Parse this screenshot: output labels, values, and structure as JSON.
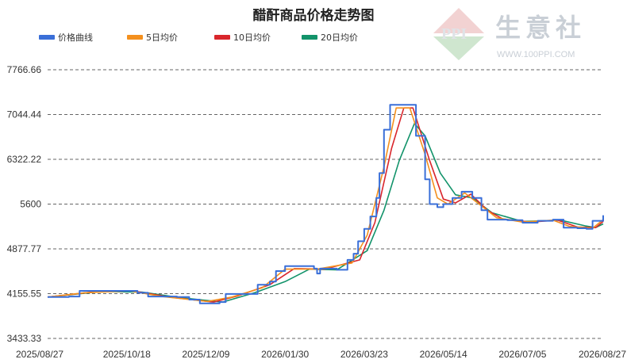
{
  "watermark": {
    "brand": "生意社",
    "url": "WWW.100PPI.COM"
  },
  "colors": {
    "price": "#3a6fd8",
    "ma5": "#f4901e",
    "ma10": "#d9262c",
    "ma20": "#12936a",
    "grid": "#333333"
  },
  "chart_data": {
    "type": "line",
    "title": "醋酐商品价格走势图",
    "xlabel": "",
    "ylabel": "",
    "grid": "horizontal-dashed",
    "legend_position": "top-left",
    "x_tick_labels": [
      "2025/08/27",
      "2025/10/18",
      "2025/12/09",
      "2026/01/30",
      "2026/03/23",
      "2026/05/14",
      "2026/07/05",
      "2026/08/27"
    ],
    "y_tick_labels": [
      "3433.33",
      "4155.55",
      "4877.77",
      "5600",
      "6322.22",
      "7044.44",
      "7766.66"
    ],
    "ylim": [
      3433.33,
      7766.66
    ],
    "x_range": [
      "2025/08/27",
      "2026/08/27"
    ],
    "series": [
      {
        "name": "价格曲线",
        "color": "#3a6fd8",
        "points": [
          [
            "2025/08/27",
            4100
          ],
          [
            "2025/09/10",
            4110
          ],
          [
            "2025/09/17",
            4200
          ],
          [
            "2025/10/18",
            4200
          ],
          [
            "2025/10/25",
            4170
          ],
          [
            "2025/11/01",
            4110
          ],
          [
            "2025/11/20",
            4100
          ],
          [
            "2025/11/28",
            4060
          ],
          [
            "2025/12/05",
            4000
          ],
          [
            "2025/12/18",
            4020
          ],
          [
            "2025/12/22",
            4150
          ],
          [
            "2026/01/05",
            4150
          ],
          [
            "2026/01/12",
            4300
          ],
          [
            "2026/01/20",
            4350
          ],
          [
            "2026/01/24",
            4520
          ],
          [
            "2026/01/30",
            4600
          ],
          [
            "2026/02/18",
            4560
          ],
          [
            "2026/02/20",
            4480
          ],
          [
            "2026/02/22",
            4560
          ],
          [
            "2026/03/05",
            4540
          ],
          [
            "2026/03/12",
            4700
          ],
          [
            "2026/03/16",
            4800
          ],
          [
            "2026/03/19",
            5000
          ],
          [
            "2026/03/23",
            5200
          ],
          [
            "2026/03/27",
            5400
          ],
          [
            "2026/03/31",
            5700
          ],
          [
            "2026/04/02",
            6100
          ],
          [
            "2026/04/05",
            6800
          ],
          [
            "2026/04/09",
            7200
          ],
          [
            "2026/04/21",
            7200
          ],
          [
            "2026/04/26",
            6700
          ],
          [
            "2026/05/02",
            6000
          ],
          [
            "2026/05/05",
            5600
          ],
          [
            "2026/05/10",
            5550
          ],
          [
            "2026/05/14",
            5600
          ],
          [
            "2026/05/20",
            5700
          ],
          [
            "2026/05/26",
            5800
          ],
          [
            "2026/06/02",
            5700
          ],
          [
            "2026/06/08",
            5500
          ],
          [
            "2026/06/12",
            5350
          ],
          [
            "2026/06/25",
            5340
          ],
          [
            "2026/07/05",
            5300
          ],
          [
            "2026/07/15",
            5330
          ],
          [
            "2026/07/25",
            5350
          ],
          [
            "2026/08/01",
            5220
          ],
          [
            "2026/08/10",
            5210
          ],
          [
            "2026/08/16",
            5200
          ],
          [
            "2026/08/20",
            5330
          ],
          [
            "2026/08/27",
            5420
          ]
        ]
      },
      {
        "name": "5日均价",
        "color": "#f4901e",
        "points": [
          [
            "2025/08/27",
            4100
          ],
          [
            "2025/09/20",
            4170
          ],
          [
            "2025/10/20",
            4200
          ],
          [
            "2025/11/10",
            4110
          ],
          [
            "2025/12/10",
            4030
          ],
          [
            "2025/12/26",
            4100
          ],
          [
            "2026/01/15",
            4250
          ],
          [
            "2026/01/30",
            4550
          ],
          [
            "2026/02/20",
            4550
          ],
          [
            "2026/03/15",
            4650
          ],
          [
            "2026/03/25",
            5100
          ],
          [
            "2026/04/05",
            6200
          ],
          [
            "2026/04/13",
            7150
          ],
          [
            "2026/04/22",
            7150
          ],
          [
            "2026/05/02",
            6400
          ],
          [
            "2026/05/10",
            5700
          ],
          [
            "2026/05/17",
            5600
          ],
          [
            "2026/05/28",
            5780
          ],
          [
            "2026/06/08",
            5570
          ],
          [
            "2026/06/18",
            5380
          ],
          [
            "2026/07/05",
            5310
          ],
          [
            "2026/07/25",
            5340
          ],
          [
            "2026/08/05",
            5240
          ],
          [
            "2026/08/20",
            5210
          ],
          [
            "2026/08/27",
            5350
          ]
        ]
      },
      {
        "name": "10日均价",
        "color": "#d9262c",
        "points": [
          [
            "2025/08/27",
            4100
          ],
          [
            "2025/09/25",
            4180
          ],
          [
            "2025/10/22",
            4200
          ],
          [
            "2025/11/15",
            4100
          ],
          [
            "2025/12/14",
            4020
          ],
          [
            "2025/12/30",
            4120
          ],
          [
            "2026/01/20",
            4300
          ],
          [
            "2026/02/05",
            4560
          ],
          [
            "2026/02/25",
            4550
          ],
          [
            "2026/03/20",
            4700
          ],
          [
            "2026/03/30",
            5300
          ],
          [
            "2026/04/10",
            6500
          ],
          [
            "2026/04/18",
            7150
          ],
          [
            "2026/04/24",
            7150
          ],
          [
            "2026/05/05",
            6300
          ],
          [
            "2026/05/14",
            5680
          ],
          [
            "2026/05/22",
            5620
          ],
          [
            "2026/06/01",
            5760
          ],
          [
            "2026/06/12",
            5500
          ],
          [
            "2026/06/22",
            5360
          ],
          [
            "2026/07/10",
            5310
          ],
          [
            "2026/07/28",
            5340
          ],
          [
            "2026/08/10",
            5230
          ],
          [
            "2026/08/22",
            5220
          ],
          [
            "2026/08/27",
            5320
          ]
        ]
      },
      {
        "name": "20日均价",
        "color": "#12936a",
        "points": [
          [
            "2025/08/27",
            4100
          ],
          [
            "2025/10/01",
            4190
          ],
          [
            "2025/10/28",
            4180
          ],
          [
            "2025/11/22",
            4090
          ],
          [
            "2025/12/20",
            4020
          ],
          [
            "2026/01/10",
            4170
          ],
          [
            "2026/01/30",
            4350
          ],
          [
            "2026/02/15",
            4550
          ],
          [
            "2026/03/05",
            4540
          ],
          [
            "2026/03/25",
            4850
          ],
          [
            "2026/04/05",
            5500
          ],
          [
            "2026/04/15",
            6300
          ],
          [
            "2026/04/25",
            6900
          ],
          [
            "2026/05/02",
            6700
          ],
          [
            "2026/05/12",
            6100
          ],
          [
            "2026/05/22",
            5750
          ],
          [
            "2026/06/02",
            5700
          ],
          [
            "2026/06/15",
            5460
          ],
          [
            "2026/07/05",
            5320
          ],
          [
            "2026/07/30",
            5340
          ],
          [
            "2026/08/15",
            5250
          ],
          [
            "2026/08/22",
            5220
          ],
          [
            "2026/08/27",
            5280
          ]
        ]
      }
    ]
  }
}
